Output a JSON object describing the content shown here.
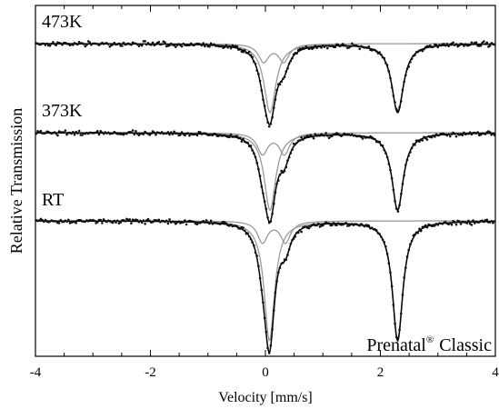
{
  "chart_data": {
    "type": "scatter",
    "title": "",
    "xlabel": "Velocity [mm/s]",
    "ylabel": "Relative Transmission",
    "xlim": [
      -4,
      4
    ],
    "xticks": [
      -4,
      -2,
      0,
      2,
      4
    ],
    "grid": false,
    "legend": "none",
    "annotation": {
      "text": "Prenatal",
      "superscript": "®",
      "suffix": "Classic"
    },
    "series": [
      {
        "name": "473K",
        "doublets": [
          {
            "left_center": 0.08,
            "right_center": 2.3,
            "width": 0.25,
            "depth": 0.35
          },
          {
            "left_center": -0.03,
            "right_center": 0.32,
            "width": 0.22,
            "depth": 0.09
          }
        ]
      },
      {
        "name": "373K",
        "doublets": [
          {
            "left_center": 0.08,
            "right_center": 2.3,
            "width": 0.24,
            "depth": 0.37
          },
          {
            "left_center": -0.05,
            "right_center": 0.33,
            "width": 0.22,
            "depth": 0.1
          }
        ]
      },
      {
        "name": "RT",
        "doublets": [
          {
            "left_center": 0.07,
            "right_center": 2.3,
            "width": 0.22,
            "depth": 0.56
          },
          {
            "left_center": -0.05,
            "right_center": 0.35,
            "width": 0.21,
            "depth": 0.1
          }
        ]
      }
    ]
  }
}
